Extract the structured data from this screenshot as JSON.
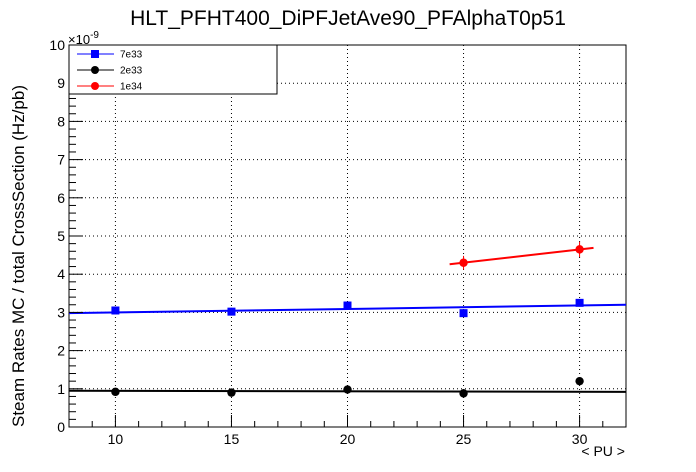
{
  "chart_data": {
    "type": "scatter",
    "title": "HLT_PFHT400_DiPFJetAve90_PFAlphaT0p51",
    "xlabel": "< PU >",
    "ylabel": "Steam Rates MC / total CrossSection (Hz/pb)",
    "y_exponent": "×10",
    "y_exponent_power": "-9",
    "xlim": [
      8,
      32
    ],
    "ylim": [
      0,
      10
    ],
    "x_ticks": [
      10,
      15,
      20,
      25,
      30
    ],
    "x_tick_labels": [
      "10",
      "15",
      "20",
      "25",
      "30"
    ],
    "y_ticks": [
      0,
      1,
      2,
      3,
      4,
      5,
      6,
      7,
      8,
      9,
      10
    ],
    "y_tick_labels": [
      "0",
      "1",
      "2",
      "3",
      "4",
      "5",
      "6",
      "7",
      "8",
      "9",
      "10"
    ],
    "grid": true,
    "legend_position": "top-left",
    "series": [
      {
        "name": "7e33",
        "color": "#0000ff",
        "marker": "square",
        "x": [
          10,
          15,
          20,
          25,
          30
        ],
        "y": [
          3.05,
          3.02,
          3.18,
          2.98,
          3.25
        ],
        "y_err": [
          0.06,
          0.06,
          0.07,
          0.07,
          0.08
        ],
        "fit": {
          "x": [
            8,
            32
          ],
          "y": [
            2.98,
            3.2
          ]
        }
      },
      {
        "name": "2e33",
        "color": "#000000",
        "marker": "circle",
        "x": [
          10,
          15,
          20,
          25,
          30
        ],
        "y": [
          0.92,
          0.9,
          0.98,
          0.88,
          1.2
        ],
        "y_err": [
          0.03,
          0.03,
          0.04,
          0.04,
          0.05
        ],
        "fit": {
          "x": [
            8,
            32
          ],
          "y": [
            0.95,
            0.92
          ]
        }
      },
      {
        "name": "1e34",
        "color": "#ff0000",
        "marker": "circle",
        "x": [
          25,
          30
        ],
        "y": [
          4.3,
          4.65
        ],
        "y_err": [
          0.18,
          0.2
        ],
        "fit": {
          "x": [
            24.4,
            30.6
          ],
          "y": [
            4.26,
            4.69
          ]
        }
      }
    ]
  }
}
